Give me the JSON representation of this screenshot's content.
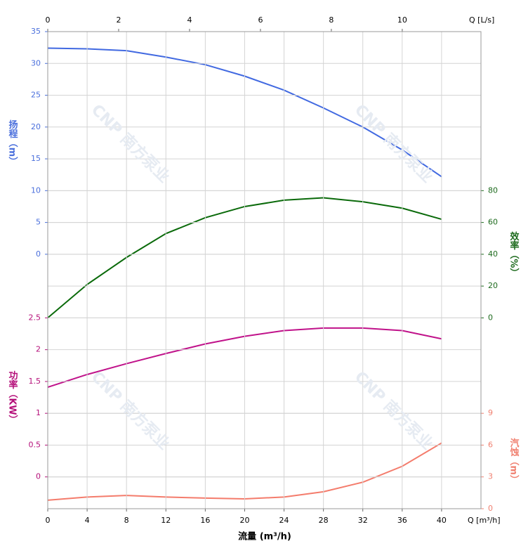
{
  "chart_data": {
    "type": "line",
    "x_title": "流量 (m³/h)",
    "x_unit": "Q [m³/h]",
    "x2_unit": "Q [L/s]",
    "watermark": "CNP 南方泵业",
    "x": [
      0,
      4,
      8,
      12,
      16,
      20,
      24,
      28,
      32,
      36,
      40
    ],
    "xlim": [
      0,
      44
    ],
    "xticks": [
      0,
      4,
      8,
      12,
      16,
      20,
      24,
      28,
      32,
      36,
      40
    ],
    "x2lim": [
      0,
      12.22
    ],
    "x2ticks": [
      0,
      2,
      4,
      6,
      8,
      10
    ],
    "grid": true,
    "axes": [
      {
        "title": "扬程（m）",
        "side": "left",
        "color": "#4a6fdc",
        "line_color": "#4169e1",
        "ylim": [
          -40,
          35
        ],
        "yticks": [
          0,
          5,
          10,
          15,
          20,
          25,
          30,
          35
        ],
        "values": [
          32.4,
          32.3,
          32.0,
          31.0,
          29.8,
          28.0,
          25.8,
          23.0,
          20.0,
          16.4,
          12.2
        ]
      },
      {
        "title": "效率（%）",
        "side": "right",
        "color": "#1e6b1e",
        "line_color": "#0a6a0a",
        "ylim": [
          -120,
          180
        ],
        "yticks": [
          0,
          20,
          40,
          60,
          80
        ],
        "values": [
          0,
          21,
          38,
          53,
          63,
          70,
          74,
          75.5,
          73,
          69,
          62
        ]
      },
      {
        "title": "功率（KW）",
        "side": "left",
        "color": "#b5107a",
        "line_color": "#c0128a",
        "ylim": [
          -0.5,
          7
        ],
        "yticks": [
          0,
          0.5,
          1,
          1.5,
          2,
          2.5
        ],
        "values": [
          1.41,
          1.61,
          1.78,
          1.94,
          2.09,
          2.21,
          2.3,
          2.34,
          2.34,
          2.3,
          2.17
        ]
      },
      {
        "title": "汽蚀（m）",
        "side": "right",
        "color": "#f08070",
        "line_color": "#f47c6c",
        "ylim": [
          0,
          45
        ],
        "yticks": [
          0,
          3,
          6,
          9
        ],
        "values": [
          0.8,
          1.1,
          1.25,
          1.1,
          1.0,
          0.93,
          1.1,
          1.6,
          2.5,
          4.0,
          6.2
        ]
      }
    ]
  }
}
